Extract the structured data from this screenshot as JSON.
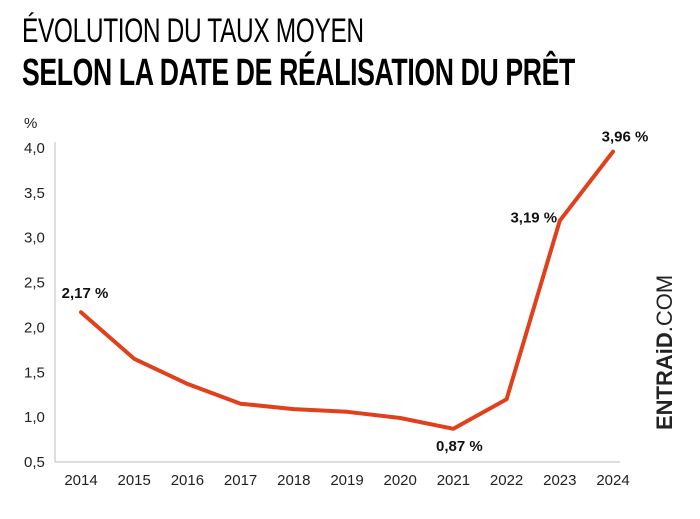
{
  "header": {
    "title_line1": "ÉVOLUTION DU TAUX MOYEN",
    "title_line2": "SELON LA DATE DE RÉALISATION DU PRÊT"
  },
  "brand": {
    "bold": "ENTRAiD",
    "light": ".COM"
  },
  "chart_data": {
    "type": "line",
    "title": "ÉVOLUTION DU TAUX MOYEN SELON LA DATE DE RÉALISATION DU PRÊT",
    "xlabel": "",
    "ylabel": "%",
    "x": [
      "2014",
      "2015",
      "2016",
      "2017",
      "2018",
      "2019",
      "2020",
      "2021",
      "2022",
      "2023",
      "2024"
    ],
    "series": [
      {
        "values": [
          2.17,
          1.65,
          1.37,
          1.15,
          1.09,
          1.06,
          0.99,
          0.87,
          1.2,
          3.19,
          3.96
        ],
        "color": "#e0401c"
      }
    ],
    "ylim": [
      0.5,
      4.0
    ],
    "yticks": [
      0.5,
      1.0,
      1.5,
      2.0,
      2.5,
      3.0,
      3.5,
      4.0
    ],
    "ytick_labels": [
      "0,5",
      "1,0",
      "1,5",
      "2,0",
      "2,5",
      "3,0",
      "3,5",
      "4,0"
    ],
    "annotations": [
      {
        "index": 0,
        "text": "2,17 %"
      },
      {
        "index": 7,
        "text": "0,87 %"
      },
      {
        "index": 9,
        "text": "3,19 %"
      },
      {
        "index": 10,
        "text": "3,96 %"
      }
    ],
    "grid": false,
    "legend": "none"
  }
}
